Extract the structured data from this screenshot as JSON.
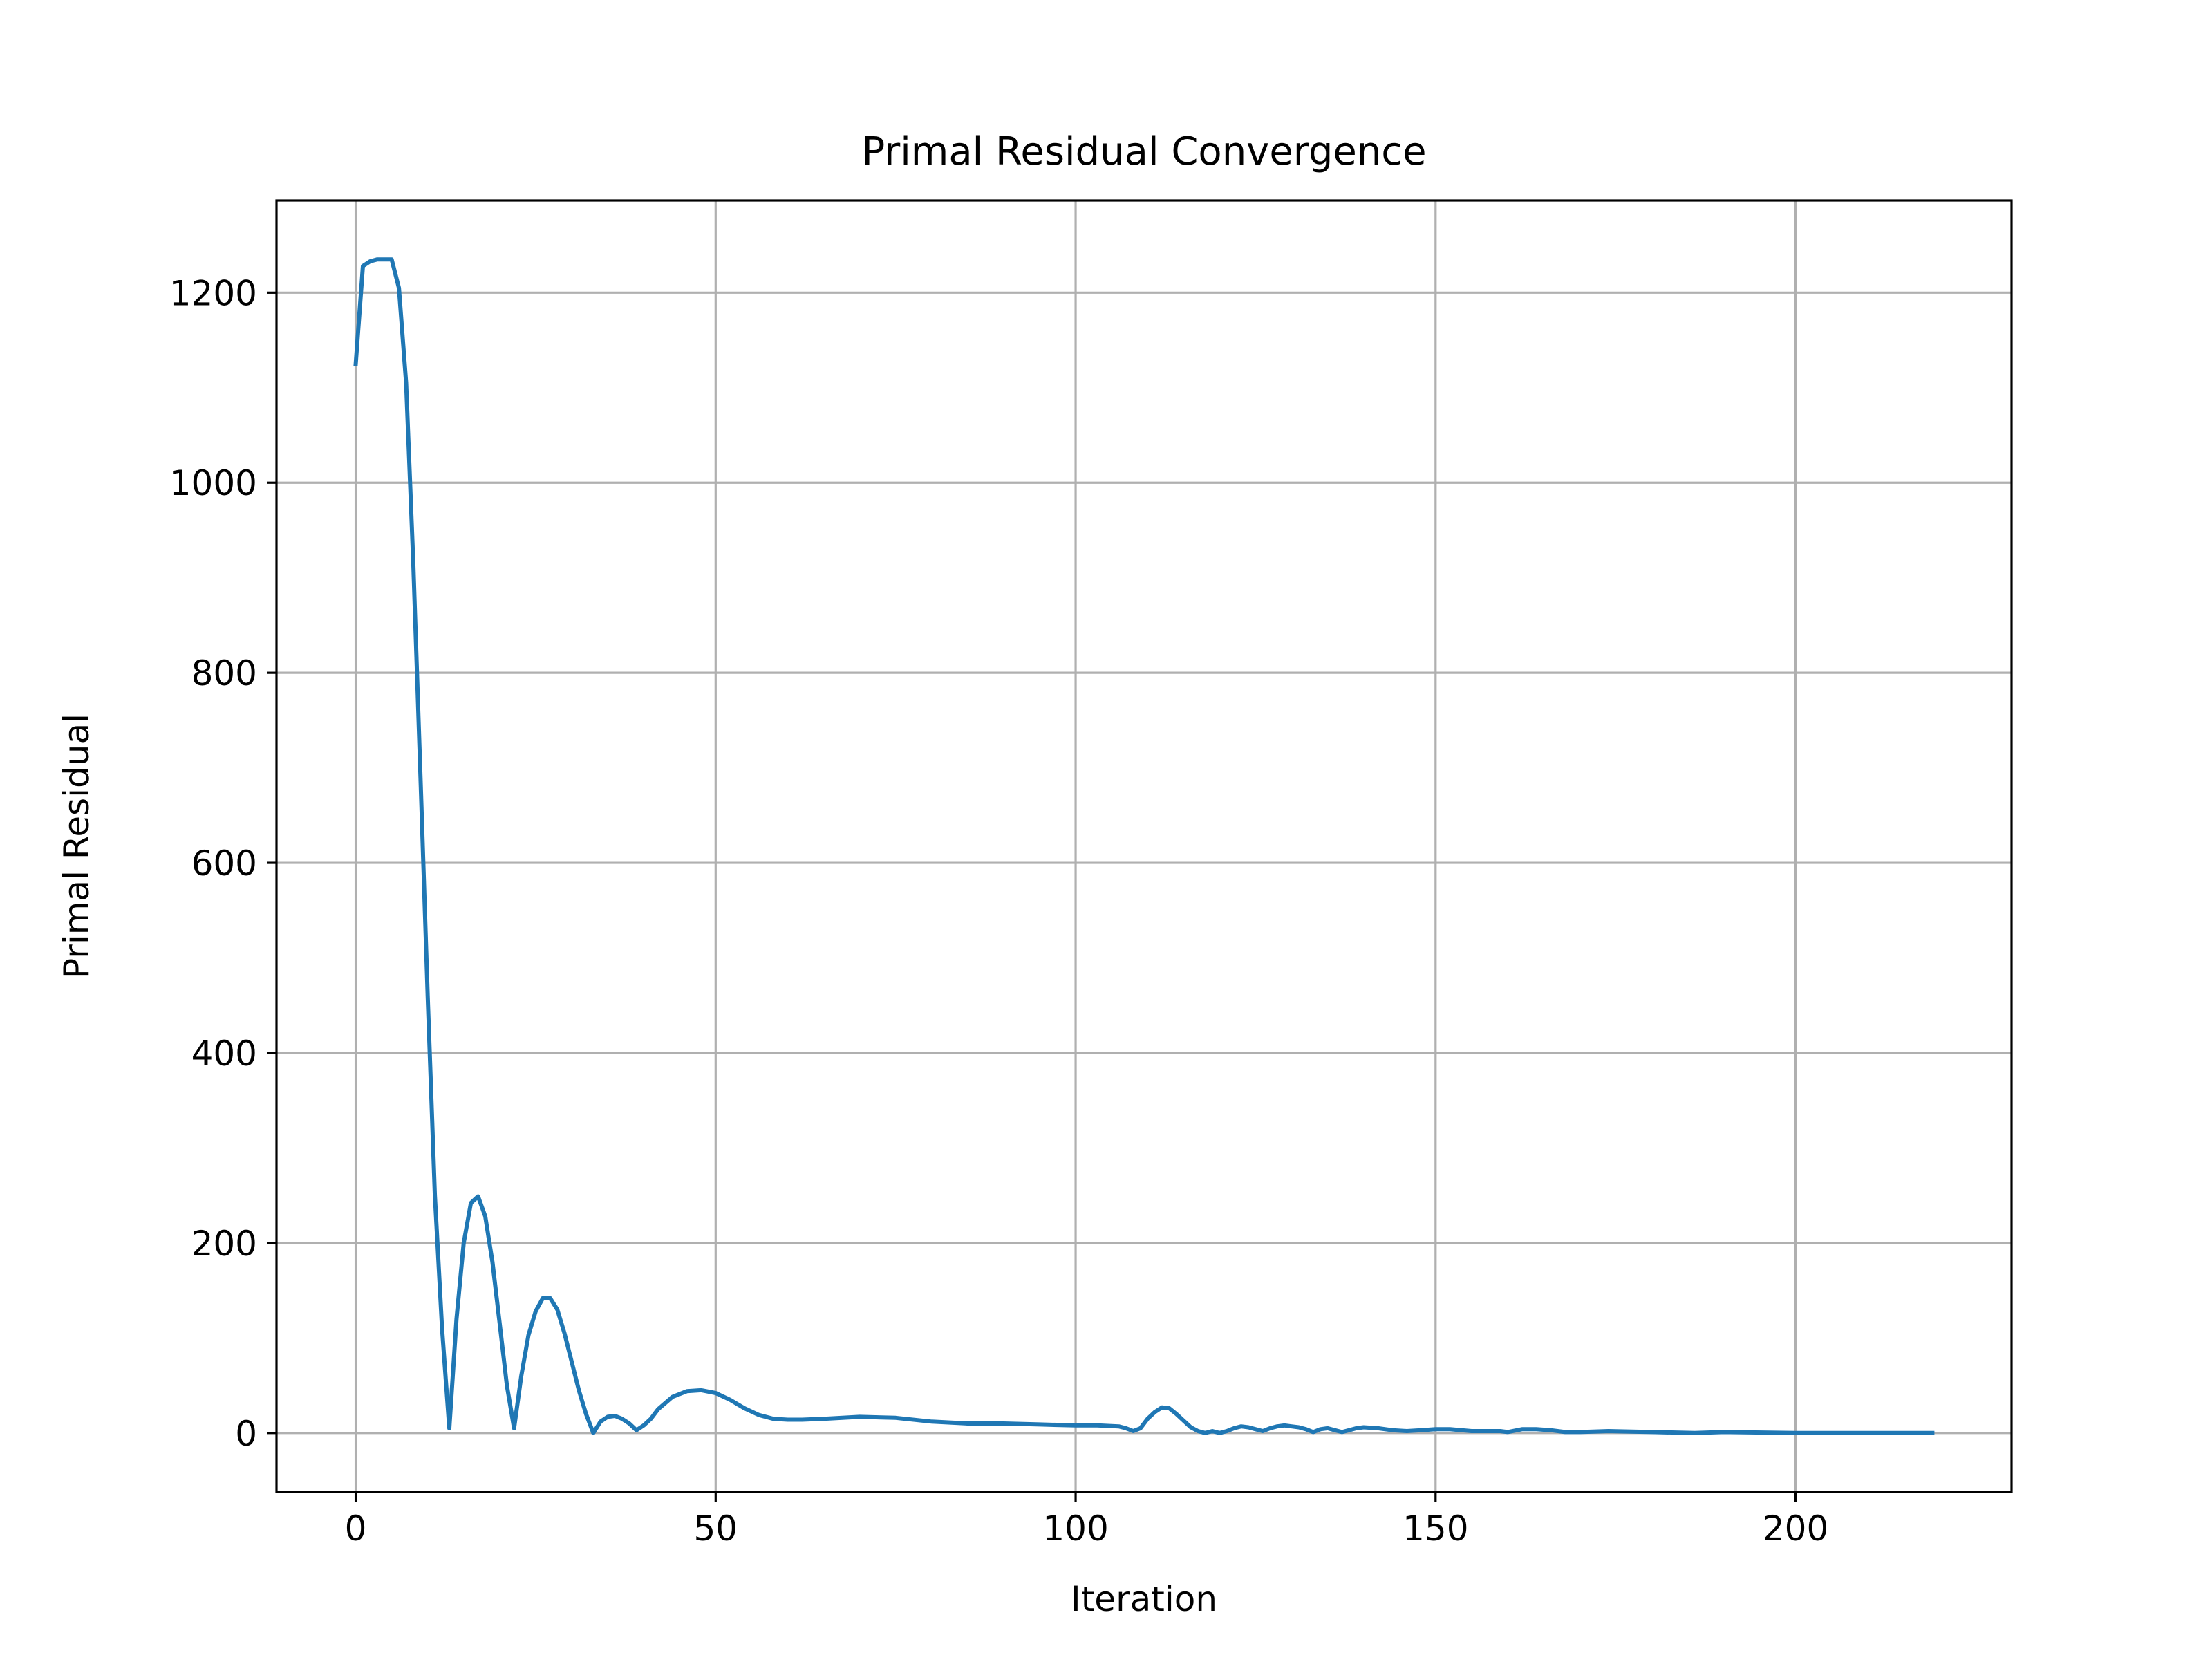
{
  "chart_data": {
    "type": "line",
    "title": "Primal Residual Convergence",
    "xlabel": "Iteration",
    "ylabel": "Primal Residual",
    "xlim": [
      -11,
      230
    ],
    "ylim": [
      -62,
      1297
    ],
    "xticks": [
      0,
      50,
      100,
      150,
      200
    ],
    "xtick_labels": [
      "0",
      "50",
      "100",
      "150",
      "200"
    ],
    "yticks": [
      0,
      200,
      400,
      600,
      800,
      1000,
      1200
    ],
    "ytick_labels": [
      "0",
      "200",
      "400",
      "600",
      "800",
      "1000",
      "1200"
    ],
    "grid": true,
    "line_color": "#1f77b4",
    "series": [
      {
        "x": [
          0,
          1,
          2,
          3,
          4,
          5,
          6,
          7,
          8,
          9,
          10,
          11,
          12,
          13,
          14,
          15,
          16,
          17,
          18,
          19,
          20,
          21,
          22,
          23,
          24,
          25,
          26,
          27,
          28,
          29,
          30,
          31,
          32,
          33,
          34,
          35,
          36,
          37,
          38,
          39,
          40,
          41,
          42,
          44,
          46,
          48,
          50,
          52,
          54,
          56,
          58,
          60,
          62,
          65,
          70,
          75,
          80,
          85,
          90,
          95,
          100,
          103,
          106,
          107,
          108,
          109,
          110,
          111,
          112,
          113,
          114,
          115,
          116,
          117,
          118,
          119,
          120,
          121,
          122,
          123,
          124,
          125,
          126,
          127,
          128,
          129,
          130,
          131,
          132,
          133,
          134,
          135,
          136,
          137,
          138,
          139,
          140,
          142,
          144,
          146,
          148,
          150,
          152,
          155,
          159,
          160,
          162,
          164,
          166,
          168,
          170,
          174,
          180,
          186,
          190,
          200,
          210,
          219
        ],
        "values": [
          1125,
          1228,
          1233,
          1235,
          1235,
          1235,
          1205,
          1105,
          915,
          690,
          460,
          250,
          110,
          5,
          120,
          200,
          242,
          249,
          228,
          180,
          115,
          50,
          5,
          60,
          103,
          128,
          142,
          142,
          130,
          105,
          75,
          45,
          20,
          0,
          12,
          17,
          18,
          15,
          10,
          3,
          8,
          15,
          25,
          38,
          44,
          45,
          42,
          35,
          26,
          19,
          15,
          14,
          14,
          15,
          17,
          16,
          12,
          10,
          10,
          9,
          8,
          8,
          7,
          5,
          2,
          5,
          15,
          22,
          27,
          26,
          20,
          13,
          6,
          2,
          0,
          2,
          0,
          2,
          5,
          7,
          6,
          4,
          2,
          5,
          7,
          8,
          7,
          6,
          4,
          1,
          4,
          5,
          3,
          1,
          3,
          5,
          6,
          5,
          3,
          2,
          3,
          4,
          4,
          2,
          2,
          1,
          4,
          4,
          3,
          1,
          1,
          2,
          1,
          0,
          1,
          0,
          0,
          0
        ]
      }
    ]
  }
}
